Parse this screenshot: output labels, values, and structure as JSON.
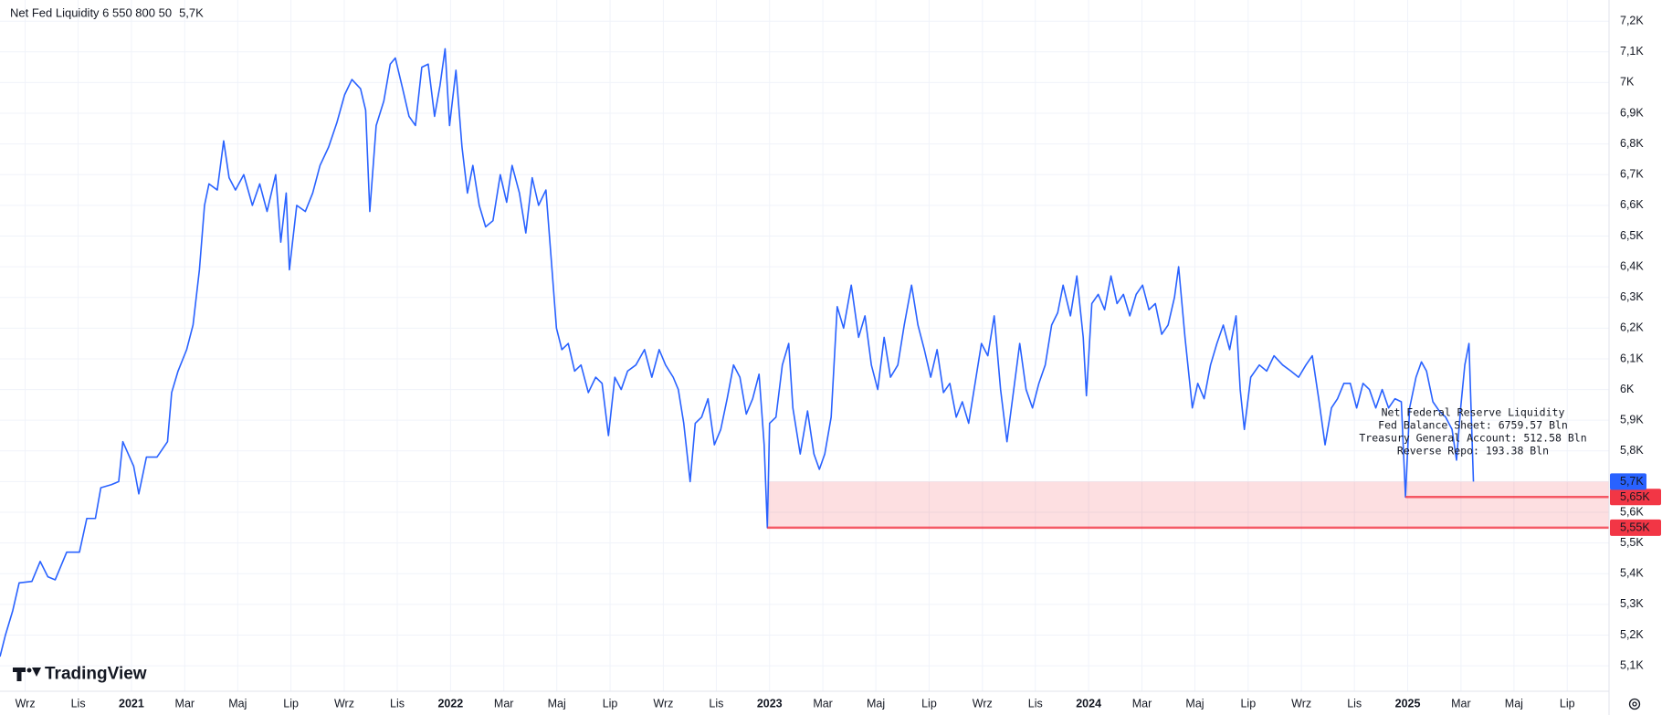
{
  "chart_data": {
    "type": "line",
    "series": [
      {
        "name": "Net Fed Liquidity 6 550 800 50",
        "color": "#2962ff",
        "x": [
          2020.588,
          2020.605,
          2020.628,
          2020.648,
          2020.688,
          2020.714,
          2020.738,
          2020.761,
          2020.797,
          2020.837,
          2020.86,
          2020.887,
          2020.904,
          2020.937,
          2020.96,
          2020.973,
          2020.99,
          2021.007,
          2021.023,
          2021.047,
          2021.08,
          2021.113,
          2021.126,
          2021.146,
          2021.173,
          2021.193,
          2021.213,
          2021.229,
          2021.243,
          2021.269,
          2021.289,
          2021.306,
          2021.326,
          2021.352,
          2021.379,
          2021.402,
          2021.425,
          2021.452,
          2021.468,
          2021.485,
          2021.495,
          2021.518,
          2021.545,
          2021.568,
          2021.591,
          2021.618,
          2021.644,
          2021.668,
          2021.691,
          2021.718,
          2021.734,
          2021.747,
          2021.767,
          2021.791,
          2021.811,
          2021.827,
          2021.85,
          2021.87,
          2021.89,
          2021.91,
          2021.93,
          2021.95,
          2021.967,
          2021.983,
          2021.997,
          2022.017,
          2022.036,
          2022.053,
          2022.07,
          2022.09,
          2022.11,
          2022.133,
          2022.156,
          2022.176,
          2022.193,
          2022.216,
          2022.236,
          2022.256,
          2022.276,
          2022.299,
          2022.316,
          2022.332,
          2022.349,
          2022.369,
          2022.389,
          2022.409,
          2022.432,
          2022.455,
          2022.475,
          2022.495,
          2022.515,
          2022.535,
          2022.555,
          2022.581,
          2022.608,
          2022.631,
          2022.654,
          2022.674,
          2022.698,
          2022.714,
          2022.731,
          2022.751,
          2022.767,
          2022.787,
          2022.807,
          2022.827,
          2022.847,
          2022.867,
          2022.887,
          2022.907,
          2022.927,
          2022.947,
          2022.967,
          2022.983,
          2022.993,
          2023.0,
          2023.02,
          2023.04,
          2023.06,
          2023.073,
          2023.096,
          2023.119,
          2023.139,
          2023.156,
          2023.173,
          2023.193,
          2023.212,
          2023.232,
          2023.256,
          2023.279,
          2023.299,
          2023.319,
          2023.339,
          2023.359,
          2023.379,
          2023.402,
          2023.422,
          2023.445,
          2023.465,
          2023.485,
          2023.505,
          2023.525,
          2023.545,
          2023.565,
          2023.585,
          2023.604,
          2023.624,
          2023.644,
          2023.664,
          2023.684,
          2023.704,
          2023.724,
          2023.744,
          2023.764,
          2023.784,
          2023.804,
          2023.824,
          2023.844,
          2023.864,
          2023.884,
          2023.903,
          2023.92,
          2023.943,
          2023.963,
          2023.983,
          2023.993,
          2024.01,
          2024.03,
          2024.05,
          2024.07,
          2024.089,
          2024.109,
          2024.129,
          2024.149,
          2024.169,
          2024.189,
          2024.209,
          2024.229,
          2024.249,
          2024.269,
          2024.282,
          2024.302,
          2024.325,
          2024.342,
          2024.362,
          2024.382,
          2024.402,
          2024.422,
          2024.442,
          2024.462,
          2024.475,
          2024.488,
          2024.508,
          2024.535,
          2024.558,
          2024.581,
          2024.608,
          2024.634,
          2024.658,
          2024.681,
          2024.701,
          2024.721,
          2024.741,
          2024.761,
          2024.78,
          2024.8,
          2024.82,
          2024.84,
          2024.86,
          2024.88,
          2024.9,
          2024.92,
          2024.94,
          2024.96,
          2024.98,
          2024.993,
          2025.006,
          2025.026,
          2025.043,
          2025.059,
          2025.079,
          2025.099,
          2025.119,
          2025.139,
          2025.153,
          2025.166,
          2025.179,
          2025.192,
          2025.206
        ],
        "values": [
          5130,
          5200,
          5280,
          5370,
          5375,
          5440,
          5390,
          5380,
          5470,
          5470,
          5580,
          5580,
          5680,
          5690,
          5700,
          5830,
          5790,
          5750,
          5660,
          5780,
          5780,
          5830,
          5990,
          6060,
          6130,
          6210,
          6390,
          6600,
          6670,
          6650,
          6810,
          6690,
          6650,
          6700,
          6600,
          6670,
          6580,
          6700,
          6480,
          6640,
          6390,
          6600,
          6580,
          6640,
          6730,
          6790,
          6870,
          6960,
          7010,
          6980,
          6910,
          6580,
          6860,
          6940,
          7060,
          7080,
          6980,
          6890,
          6860,
          7050,
          7060,
          6890,
          6990,
          7110,
          6860,
          7040,
          6790,
          6640,
          6730,
          6600,
          6530,
          6550,
          6700,
          6610,
          6730,
          6640,
          6510,
          6690,
          6600,
          6650,
          6420,
          6200,
          6130,
          6150,
          6060,
          6080,
          5990,
          6040,
          6020,
          5850,
          6040,
          6000,
          6060,
          6080,
          6130,
          6040,
          6130,
          6080,
          6040,
          6000,
          5890,
          5700,
          5890,
          5910,
          5970,
          5820,
          5870,
          5970,
          6080,
          6040,
          5920,
          5970,
          6050,
          5820,
          5550,
          5890,
          5910,
          6080,
          6150,
          5940,
          5790,
          5930,
          5790,
          5740,
          5790,
          5910,
          6270,
          6200,
          6340,
          6170,
          6240,
          6080,
          6000,
          6170,
          6040,
          6080,
          6210,
          6340,
          6210,
          6130,
          6040,
          6130,
          5990,
          6020,
          5910,
          5960,
          5890,
          6020,
          6150,
          6110,
          6240,
          6000,
          5830,
          5990,
          6150,
          6000,
          5940,
          6020,
          6080,
          6210,
          6250,
          6340,
          6240,
          6370,
          6170,
          5980,
          6280,
          6310,
          6260,
          6370,
          6280,
          6310,
          6240,
          6310,
          6340,
          6260,
          6280,
          6180,
          6210,
          6300,
          6400,
          6170,
          5940,
          6020,
          5970,
          6080,
          6150,
          6210,
          6130,
          6240,
          6000,
          5870,
          6040,
          6080,
          6060,
          6110,
          6080,
          6060,
          6040,
          6080,
          6110,
          5970,
          5820,
          5940,
          5970,
          6020,
          6020,
          5940,
          6020,
          6000,
          5940,
          6000,
          5940,
          5970,
          5960,
          5650,
          5940,
          6040,
          6090,
          6060,
          5960,
          5930,
          5910,
          5870,
          5770,
          5940,
          6080,
          6150,
          5700
        ],
        "last_value_label": "5,7K"
      }
    ],
    "xlim": [
      2020.588,
      2025.631
    ],
    "xticks": [
      {
        "value": 2020.667,
        "label": "Wrz"
      },
      {
        "value": 2020.833,
        "label": "Lis"
      },
      2021,
      {
        "value": 2021.167,
        "label": "Mar"
      },
      {
        "value": 2021.333,
        "label": "Maj"
      },
      {
        "value": 2021.5,
        "label": "Lip"
      },
      {
        "value": 2021.667,
        "label": "Wrz"
      },
      {
        "value": 2021.833,
        "label": "Lis"
      },
      2022,
      {
        "value": 2022.167,
        "label": "Mar"
      },
      {
        "value": 2022.333,
        "label": "Maj"
      },
      {
        "value": 2022.5,
        "label": "Lip"
      },
      {
        "value": 2022.667,
        "label": "Wrz"
      },
      {
        "value": 2022.833,
        "label": "Lis"
      },
      2023,
      {
        "value": 2023.167,
        "label": "Mar"
      },
      {
        "value": 2023.333,
        "label": "Maj"
      },
      {
        "value": 2023.5,
        "label": "Lip"
      },
      {
        "value": 2023.667,
        "label": "Wrz"
      },
      {
        "value": 2023.833,
        "label": "Lis"
      },
      2024,
      {
        "value": 2024.167,
        "label": "Mar"
      },
      {
        "value": 2024.333,
        "label": "Maj"
      },
      {
        "value": 2024.5,
        "label": "Lip"
      },
      {
        "value": 2024.667,
        "label": "Wrz"
      },
      {
        "value": 2024.833,
        "label": "Lis"
      },
      2025,
      {
        "value": 2025.167,
        "label": "Mar"
      },
      {
        "value": 2025.333,
        "label": "Maj"
      },
      {
        "value": 2025.5,
        "label": "Lip"
      }
    ],
    "ylim": [
      5017,
      7269
    ],
    "yticks": [
      {
        "value": 5100,
        "label": "5,1K"
      },
      {
        "value": 5200,
        "label": "5,2K"
      },
      {
        "value": 5300,
        "label": "5,3K"
      },
      {
        "value": 5400,
        "label": "5,4K"
      },
      {
        "value": 5500,
        "label": "5,5K"
      },
      {
        "value": 5600,
        "label": "5,6K"
      },
      {
        "value": 5700,
        "label": "5,7K"
      },
      {
        "value": 5800,
        "label": "5,8K"
      },
      {
        "value": 5900,
        "label": "5,9K"
      },
      {
        "value": 6000,
        "label": "6K"
      },
      {
        "value": 6100,
        "label": "6,1K"
      },
      {
        "value": 6200,
        "label": "6,2K"
      },
      {
        "value": 6300,
        "label": "6,3K"
      },
      {
        "value": 6400,
        "label": "6,4K"
      },
      {
        "value": 6500,
        "label": "6,5K"
      },
      {
        "value": 6600,
        "label": "6,6K"
      },
      {
        "value": 6700,
        "label": "6,7K"
      },
      {
        "value": 6800,
        "label": "6,8K"
      },
      {
        "value": 6900,
        "label": "6,9K"
      },
      {
        "value": 7000,
        "label": "7K"
      },
      {
        "value": 7100,
        "label": "7,1K"
      },
      {
        "value": 7200,
        "label": "7,2K"
      }
    ],
    "grid": true,
    "zone": {
      "x0": 2022.993,
      "y0": 5550,
      "y1": 5700,
      "color": "#f23645"
    },
    "levels": [
      {
        "x0": 2024.993,
        "value": 5650,
        "label": "5,65K",
        "color": "#f23645"
      },
      {
        "x0": 2022.993,
        "value": 5550,
        "label": "5,55K",
        "color": "#f23645"
      }
    ],
    "annotation": {
      "color": "#e0182a",
      "lines": [
        "Net Federal Reserve Liquidity",
        "Fed Balance Sheet: 6759.57 Bln",
        "Treasury General Account: 512.58 Bln",
        "Reverse Repo: 193.38 Bln"
      ]
    },
    "watermark": "TradingView"
  }
}
